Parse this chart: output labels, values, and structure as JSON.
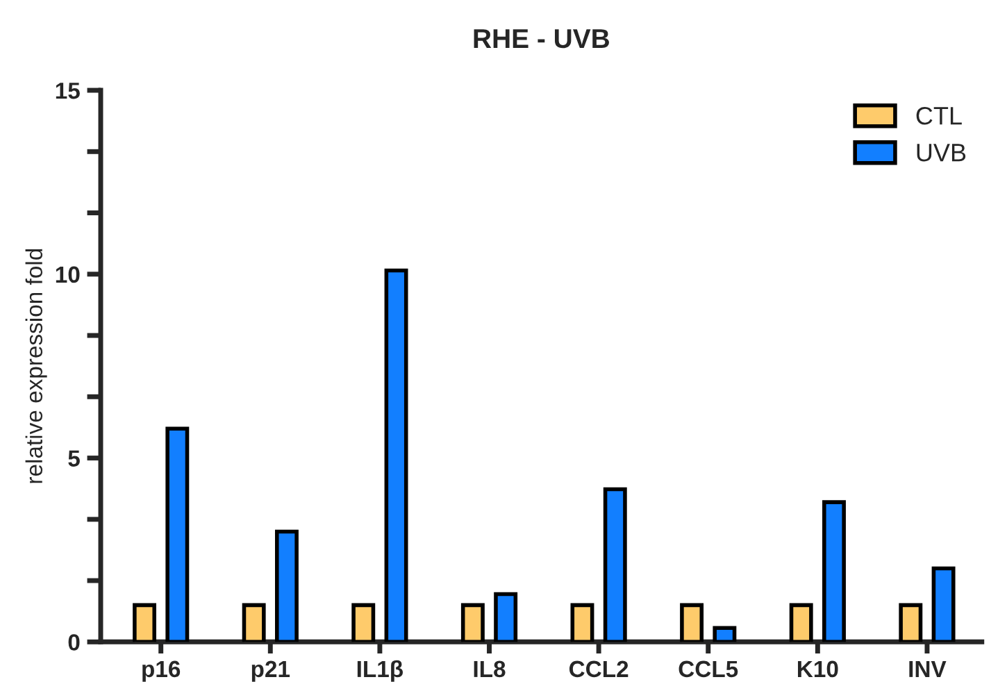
{
  "chart_data": {
    "type": "bar",
    "title": "RHE - UVB",
    "ylabel": "relative expression fold",
    "categories": [
      "p16",
      "p21",
      "IL1β",
      "IL8",
      "CCL2",
      "CCL5",
      "K10",
      "INV"
    ],
    "series": [
      {
        "name": "CTL",
        "color": "#fecb6b",
        "values": [
          1.0,
          1.0,
          1.0,
          1.0,
          1.0,
          1.0,
          1.0,
          1.0
        ]
      },
      {
        "name": "UVB",
        "color": "#127fff",
        "values": [
          5.8,
          3.0,
          10.1,
          1.3,
          4.15,
          0.38,
          3.8,
          2.0
        ]
      }
    ],
    "ylim": [
      0,
      15
    ],
    "yticks": [
      0,
      {
        "value": 1.667,
        "label": null
      },
      {
        "value": 3.333,
        "label": null
      },
      5,
      {
        "value": 6.667,
        "label": null
      },
      {
        "value": 8.333,
        "label": null
      },
      10,
      {
        "value": 11.667,
        "label": null
      },
      {
        "value": 13.333,
        "label": null
      },
      15
    ],
    "grid": false,
    "legend": "top right"
  }
}
